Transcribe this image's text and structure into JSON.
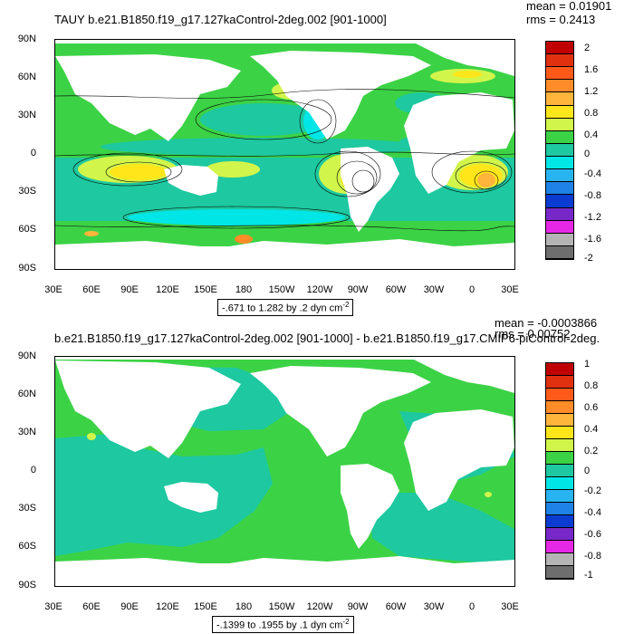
{
  "top": {
    "title": "TAUY b.e21.B1850.f19_g17.127kaControl-2deg.002 [901-1000]",
    "mean": "mean = 0.01901",
    "rms": "rms = 0.2413",
    "range": "-.671 to 1.282 by .2 dyn cm",
    "range_sup": "-2",
    "colorbar": [
      "2",
      "1.6",
      "1.2",
      "0.8",
      "0.4",
      "0",
      "-0.4",
      "-0.8",
      "-1.2",
      "-1.6",
      "-2"
    ],
    "colors": [
      "#c00000",
      "#e03010",
      "#ff5a1a",
      "#ff8c28",
      "#ffb43c",
      "#ffe61a",
      "#d2f54b",
      "#3cd246",
      "#1ec8a0",
      "#00e6e6",
      "#28b4f0",
      "#1e82e6",
      "#0a3cd2",
      "#7828c8",
      "#e628e6",
      "#b4b4b4",
      "#6e6e6e"
    ]
  },
  "bottom": {
    "title": "b.e21.B1850.f19_g17.127kaControl-2deg.002 [901-1000] - b.e21.B1850.f19_g17.CMIP6-piControl-2deg.",
    "mean": "mean = -0.0003866",
    "rms": "rms = 0.00752",
    "range": "-.1399 to .1955 by .1 dyn cm",
    "range_sup": "-2",
    "colorbar": [
      "1",
      "0.8",
      "0.6",
      "0.4",
      "0.2",
      "0",
      "-0.2",
      "-0.4",
      "-0.6",
      "-0.8",
      "-1"
    ],
    "colors": [
      "#c00000",
      "#e03010",
      "#ff5a1a",
      "#ff8c28",
      "#ffb43c",
      "#ffe61a",
      "#d2f54b",
      "#3cd246",
      "#1ec8a0",
      "#00e6e6",
      "#28b4f0",
      "#1e82e6",
      "#0a3cd2",
      "#7828c8",
      "#e628e6",
      "#b4b4b4",
      "#6e6e6e"
    ]
  },
  "lat_labels": [
    "90N",
    "60N",
    "30N",
    "0",
    "30S",
    "60S",
    "90S"
  ],
  "lon_labels": [
    "30E",
    "60E",
    "90E",
    "120E",
    "150E",
    "180",
    "150W",
    "120W",
    "90W",
    "60W",
    "30W",
    "0",
    "30E"
  ]
}
